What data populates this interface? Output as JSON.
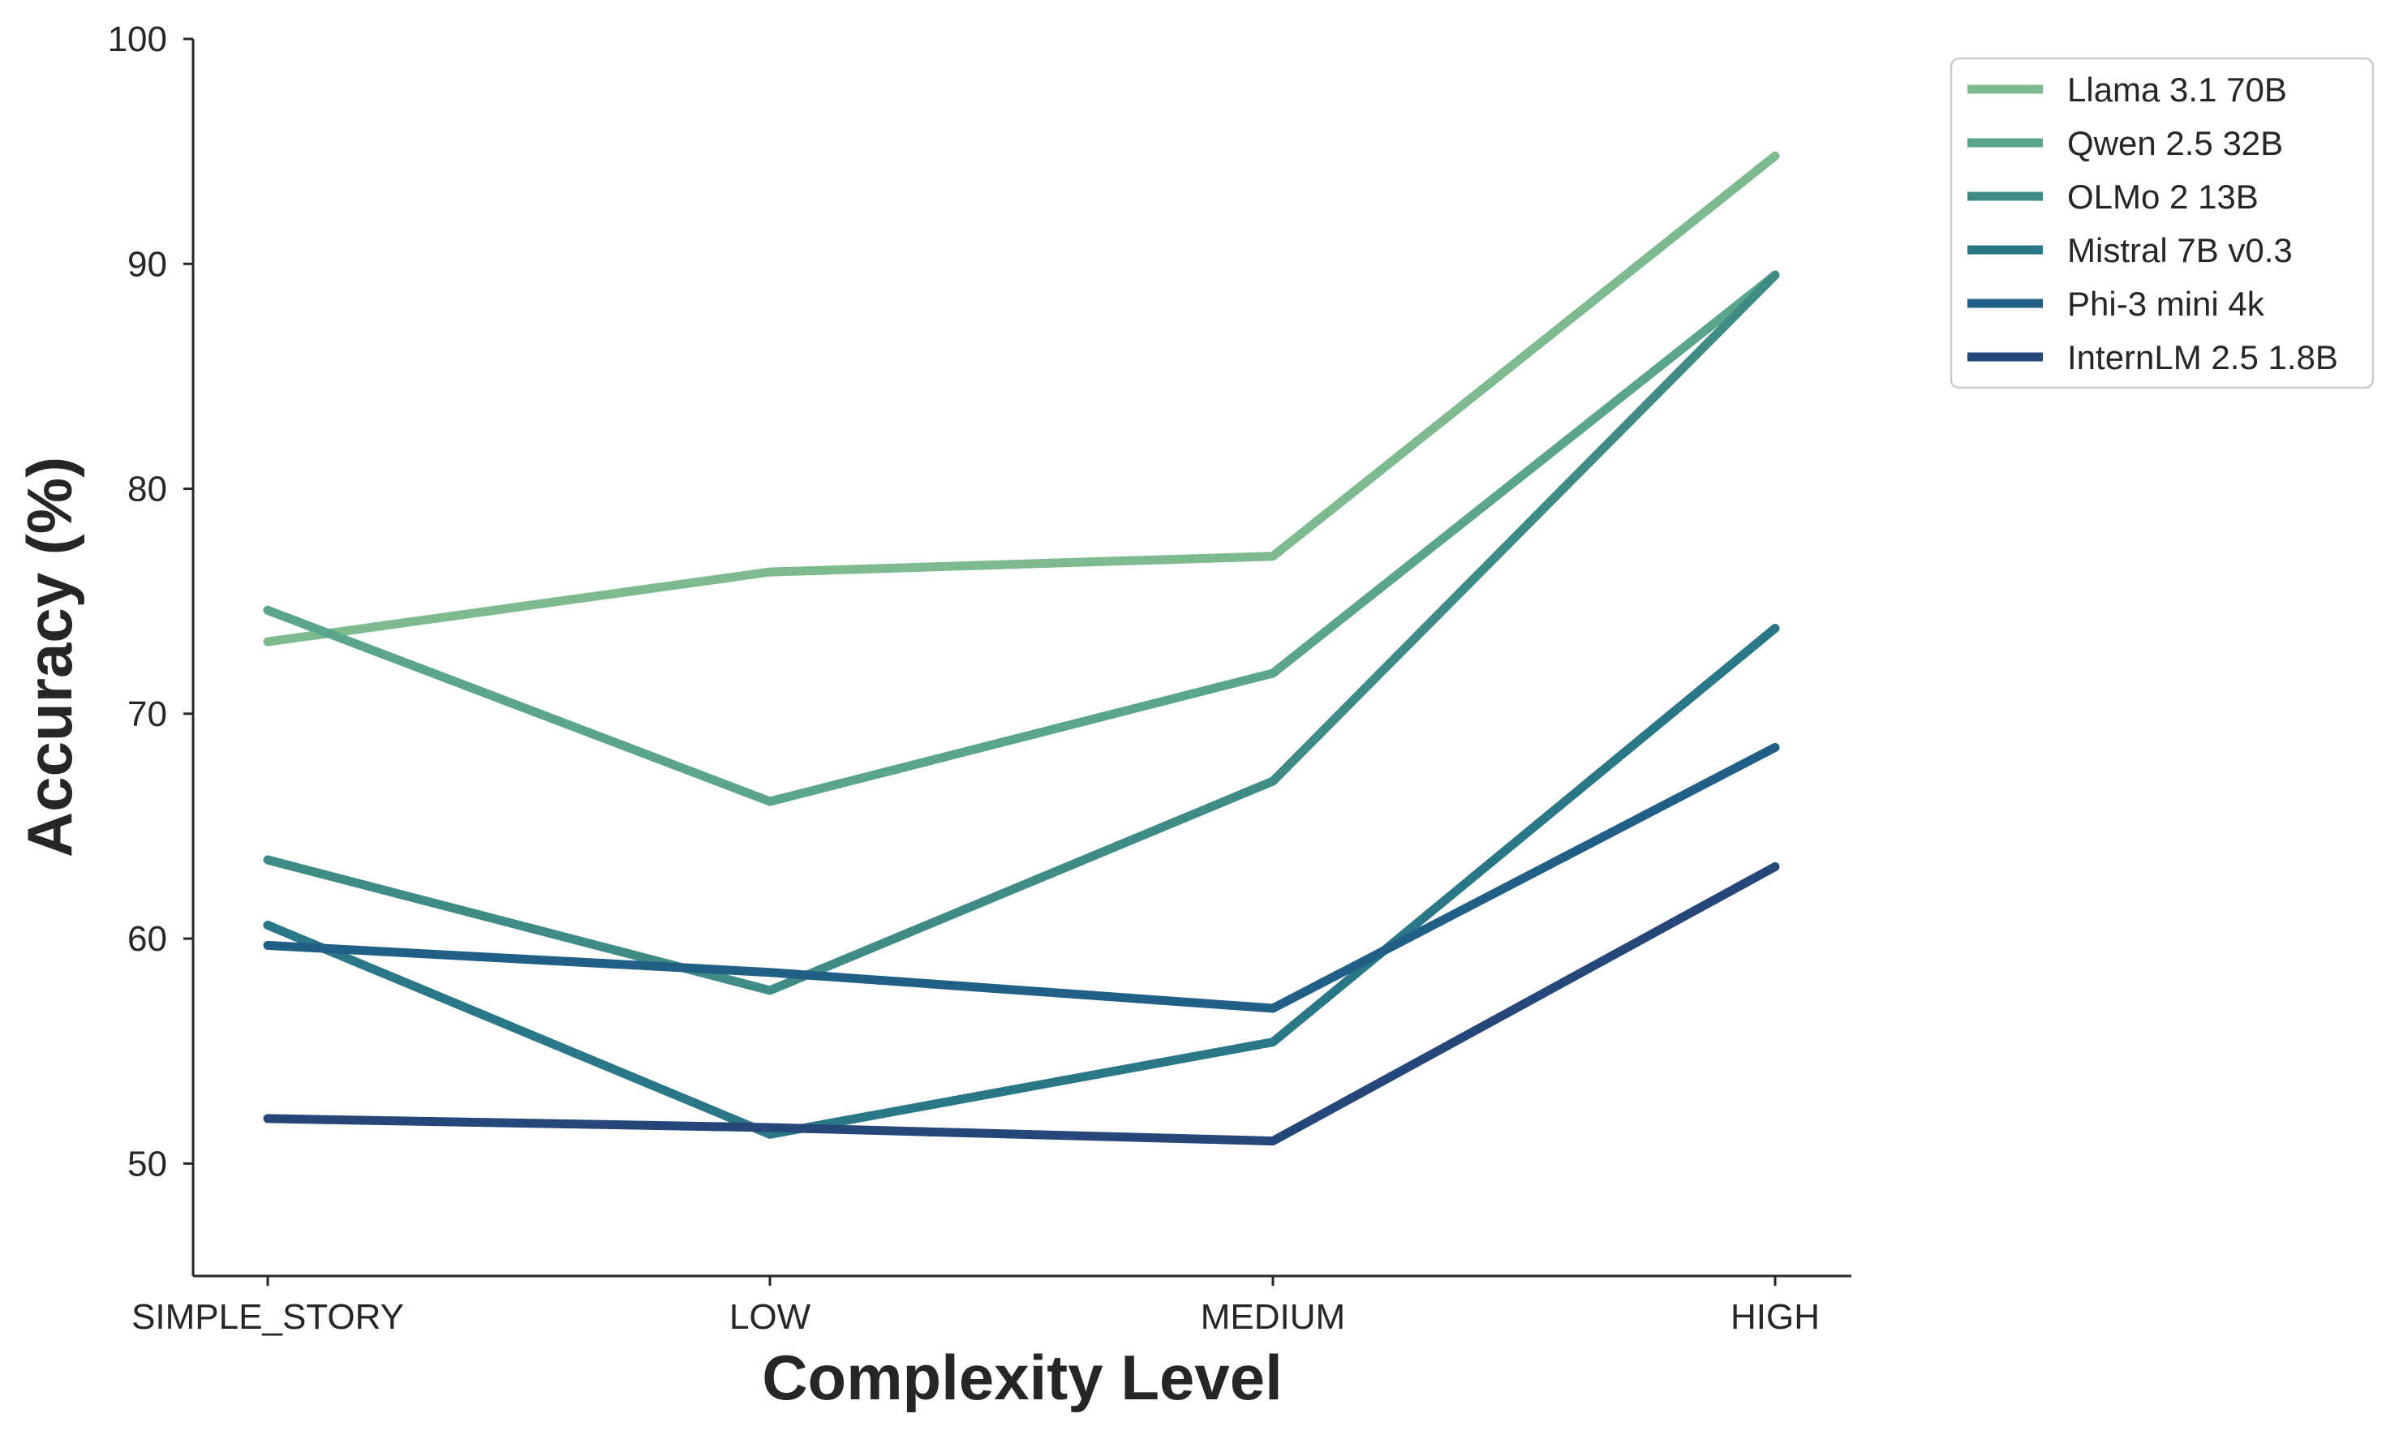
{
  "chart_data": {
    "type": "line",
    "title": "",
    "xlabel": "Complexity Level",
    "ylabel": "Accuracy (%)",
    "categories": [
      "SIMPLE_STORY",
      "LOW",
      "MEDIUM",
      "HIGH"
    ],
    "ylim": [
      45,
      100
    ],
    "yticks": [
      50,
      60,
      70,
      80,
      90,
      100
    ],
    "grid": false,
    "legend_position": "outside top-right",
    "series": [
      {
        "name": "Llama 3.1 70B",
        "values": [
          73.2,
          76.3,
          77.0,
          94.8
        ],
        "color": "#7dba8f"
      },
      {
        "name": "Qwen 2.5 32B",
        "values": [
          74.6,
          66.1,
          71.8,
          89.5
        ],
        "color": "#5aa58c"
      },
      {
        "name": "OLMo 2 13B",
        "values": [
          63.5,
          57.7,
          67.0,
          89.5
        ],
        "color": "#3f8b86"
      },
      {
        "name": "Mistral 7B v0.3",
        "values": [
          60.6,
          51.3,
          55.4,
          73.8
        ],
        "color": "#2a7788"
      },
      {
        "name": "Phi-3 mini 4k",
        "values": [
          59.7,
          58.5,
          56.9,
          68.5
        ],
        "color": "#215f86"
      },
      {
        "name": "InternLM 2.5 1.8B",
        "values": [
          52.0,
          51.6,
          51.0,
          63.2
        ],
        "color": "#26477a"
      }
    ]
  }
}
